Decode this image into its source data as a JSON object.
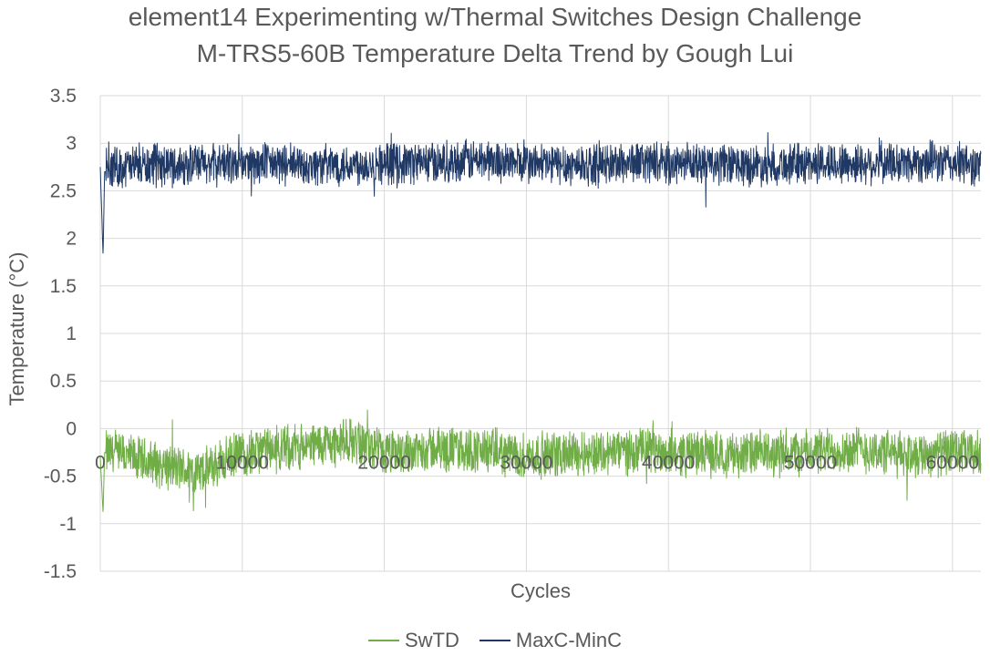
{
  "chart_data": {
    "type": "line",
    "title": "element14 Experimenting w/Thermal Switches Design Challenge",
    "subtitle": "M-TRS5-60B Temperature Delta Trend by Gough Lui",
    "xlabel": "Cycles",
    "ylabel": "Temperature (°C)",
    "xlim": [
      0,
      62000
    ],
    "ylim": [
      -1.5,
      3.5
    ],
    "x_ticks": [
      "0",
      "10000",
      "20000",
      "30000",
      "40000",
      "50000",
      "60000"
    ],
    "y_ticks": [
      "3.5",
      "3",
      "2.5",
      "2",
      "1.5",
      "1",
      "0.5",
      "0",
      "-0.5",
      "-1",
      "-1.5"
    ],
    "grid": true,
    "legend_position": "bottom",
    "series": [
      {
        "name": "SwTD",
        "color": "#70AD47",
        "mean": -0.25,
        "band": [
          -0.5,
          0.0
        ],
        "x": [
          0,
          200,
          300,
          7000,
          10000,
          18000,
          20000,
          23000,
          27000,
          30000,
          35000,
          38000,
          40000,
          45000,
          50000,
          53000,
          56000,
          60000,
          62000
        ],
        "values": [
          -0.3,
          -0.9,
          -0.25,
          -0.8,
          -0.25,
          0.05,
          -0.3,
          -0.15,
          -0.2,
          -0.35,
          -0.25,
          -0.2,
          -0.25,
          -0.3,
          -0.25,
          -0.15,
          -0.3,
          -0.25,
          -0.3
        ]
      },
      {
        "name": "MaxC-MinC",
        "color": "#203864",
        "mean": 2.78,
        "band": [
          2.55,
          3.0
        ],
        "x": [
          0,
          200,
          300,
          5000,
          10000,
          15000,
          20000,
          25000,
          27000,
          30000,
          35000,
          38000,
          40000,
          45000,
          50000,
          55000,
          58000,
          60000,
          62000
        ],
        "values": [
          2.75,
          1.8,
          2.7,
          2.75,
          2.8,
          2.75,
          2.8,
          2.85,
          2.9,
          2.8,
          2.75,
          2.85,
          2.8,
          2.75,
          2.8,
          2.8,
          2.85,
          2.8,
          2.75
        ]
      }
    ]
  }
}
